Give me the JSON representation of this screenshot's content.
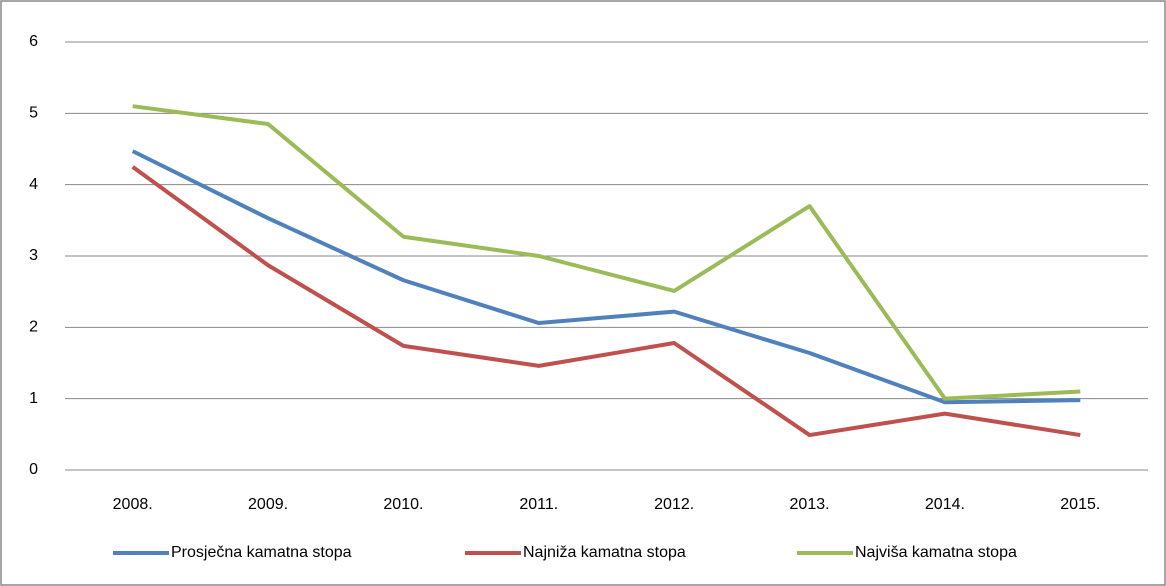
{
  "chart_data": {
    "type": "line",
    "categories": [
      "2008.",
      "2009.",
      "2010.",
      "2011.",
      "2012.",
      "2013.",
      "2014.",
      "2015."
    ],
    "series": [
      {
        "name": "Prosječna kamatna stopa",
        "color": "#4f81bd",
        "values": [
          4.47,
          3.53,
          2.66,
          2.06,
          2.22,
          1.64,
          0.95,
          0.98
        ]
      },
      {
        "name": "Najniža kamatna stopa",
        "color": "#c0504d",
        "values": [
          4.25,
          2.87,
          1.74,
          1.46,
          1.78,
          0.49,
          0.79,
          0.49
        ]
      },
      {
        "name": "Najviša kamatna stopa",
        "color": "#9bbb59",
        "values": [
          5.1,
          4.85,
          3.27,
          3.0,
          2.51,
          3.7,
          1.0,
          1.1
        ]
      }
    ],
    "ylim": [
      0,
      6
    ],
    "yticks": [
      0,
      1,
      2,
      3,
      4,
      5,
      6
    ],
    "grid": true,
    "legend": "bottom"
  }
}
